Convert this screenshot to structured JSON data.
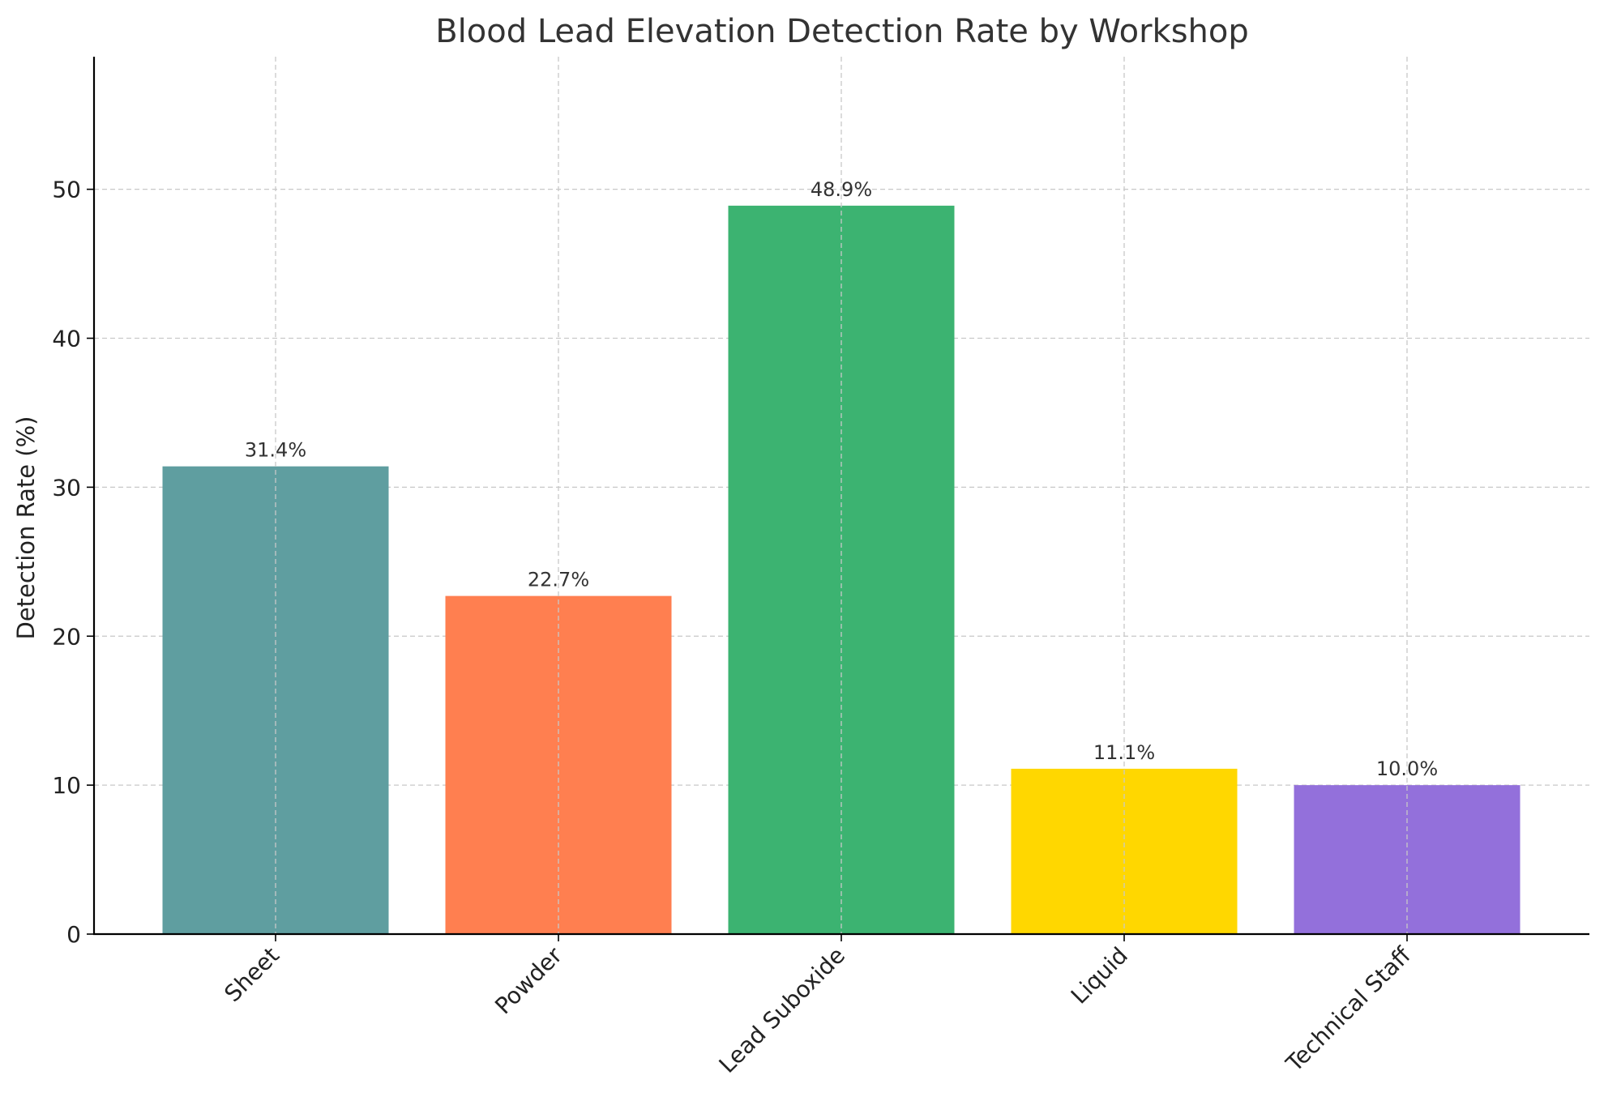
{
  "chart_data": {
    "type": "bar",
    "title": "Blood Lead Elevation Detection Rate by Workshop",
    "xlabel": "",
    "ylabel": "Detection Rate (%)",
    "categories": [
      "Sheet",
      "Powder",
      "Lead Suboxide",
      "Liquid",
      "Technical Staff"
    ],
    "values": [
      31.4,
      22.7,
      48.9,
      11.1,
      10.0
    ],
    "value_labels": [
      "31.4%",
      "22.7%",
      "48.9%",
      "11.1%",
      "10.0%"
    ],
    "colors": [
      "#5f9ea0",
      "#ff7f50",
      "#3cb371",
      "#ffd700",
      "#9370db"
    ],
    "ylim": [
      0,
      58.9
    ],
    "yticks": [
      0,
      10,
      20,
      30,
      40,
      50
    ],
    "grid": true,
    "legend": "none"
  }
}
